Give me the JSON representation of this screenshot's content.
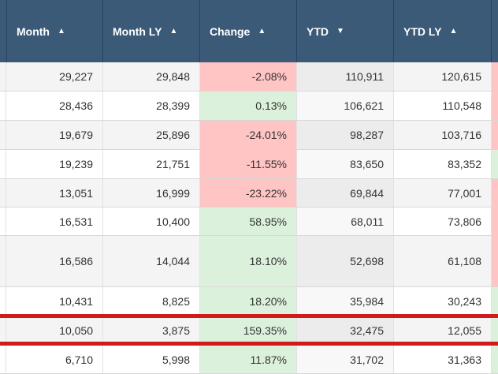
{
  "colors": {
    "header_bg": "#3a5a78",
    "header_text": "#ffffff",
    "row_odd": "#f4f4f4",
    "row_even": "#ffffff",
    "ytd_col_odd": "#ececec",
    "ytd_col_even": "#f8f8f8",
    "negative": "#ffc4c4",
    "positive": "#dcf1dc",
    "highlight": "#d11a1a"
  },
  "columns": [
    {
      "label": "Month",
      "sort": "asc",
      "arrow": "▲"
    },
    {
      "label": "Month LY",
      "sort": "asc",
      "arrow": "▲"
    },
    {
      "label": "Change",
      "sort": "asc",
      "arrow": "▲"
    },
    {
      "label": "YTD",
      "sort": "desc",
      "arrow": "▼"
    },
    {
      "label": "YTD LY",
      "sort": "asc",
      "arrow": "▲"
    }
  ],
  "rows": [
    {
      "month": "29,227",
      "month_ly": "29,848",
      "change": "-2.08%",
      "ytd": "110,911",
      "ytd_ly": "120,615",
      "trend": "negative",
      "tail": "negative"
    },
    {
      "month": "28,436",
      "month_ly": "28,399",
      "change": "0.13%",
      "ytd": "106,621",
      "ytd_ly": "110,548",
      "trend": "positive",
      "tail": "negative"
    },
    {
      "month": "19,679",
      "month_ly": "25,896",
      "change": "-24.01%",
      "ytd": "98,287",
      "ytd_ly": "103,716",
      "trend": "negative",
      "tail": "negative"
    },
    {
      "month": "19,239",
      "month_ly": "21,751",
      "change": "-11.55%",
      "ytd": "83,650",
      "ytd_ly": "83,352",
      "trend": "negative",
      "tail": "positive"
    },
    {
      "month": "13,051",
      "month_ly": "16,999",
      "change": "-23.22%",
      "ytd": "69,844",
      "ytd_ly": "77,001",
      "trend": "negative",
      "tail": "negative"
    },
    {
      "month": "16,531",
      "month_ly": "10,400",
      "change": "58.95%",
      "ytd": "68,011",
      "ytd_ly": "73,806",
      "trend": "positive",
      "tail": "negative"
    },
    {
      "month": "16,586",
      "month_ly": "14,044",
      "change": "18.10%",
      "ytd": "52,698",
      "ytd_ly": "61,108",
      "trend": "positive",
      "tail": "negative"
    },
    {
      "month": "10,431",
      "month_ly": "8,825",
      "change": "18.20%",
      "ytd": "35,984",
      "ytd_ly": "30,243",
      "trend": "positive",
      "tail": "positive"
    },
    {
      "month": "10,050",
      "month_ly": "3,875",
      "change": "159.35%",
      "ytd": "32,475",
      "ytd_ly": "12,055",
      "trend": "positive",
      "tail": "positive",
      "highlighted": true
    },
    {
      "month": "6,710",
      "month_ly": "5,998",
      "change": "11.87%",
      "ytd": "31,702",
      "ytd_ly": "31,363",
      "trend": "positive",
      "tail": "positive"
    }
  ]
}
